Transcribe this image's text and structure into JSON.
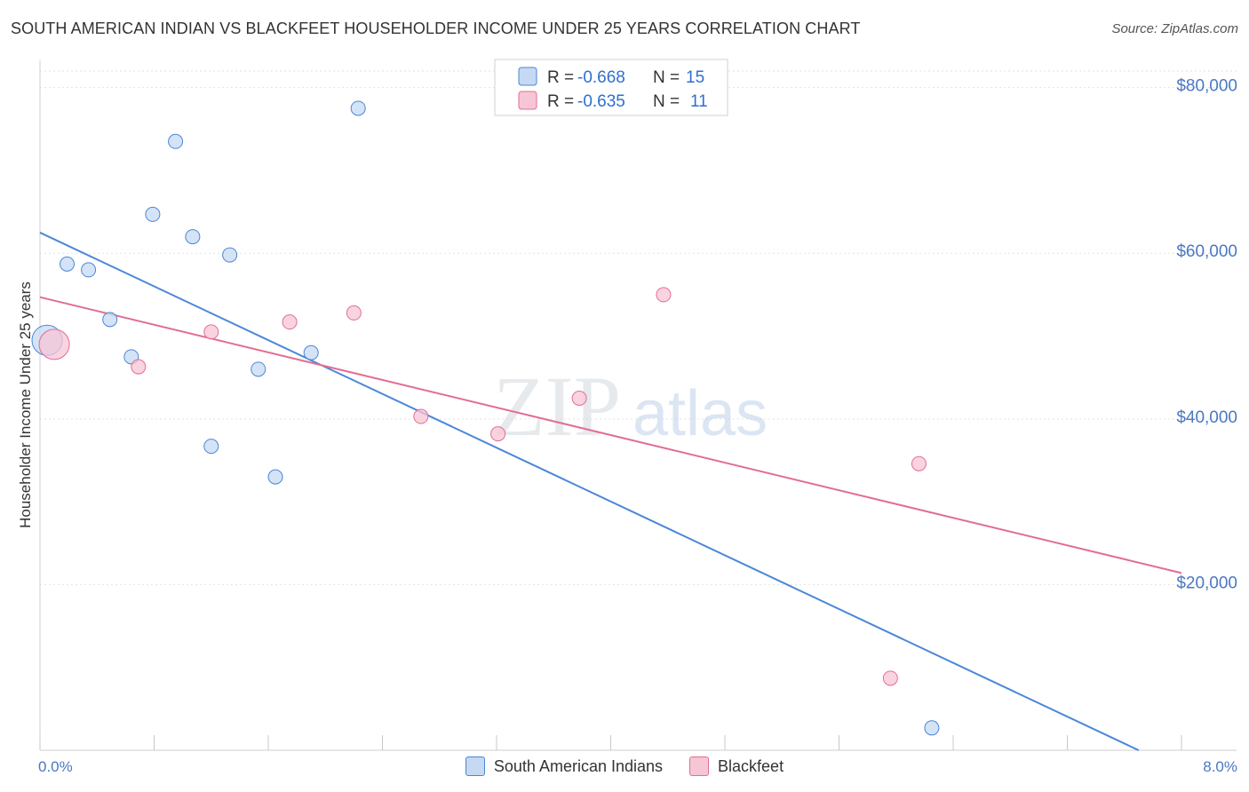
{
  "header": {
    "title": "SOUTH AMERICAN INDIAN VS BLACKFEET HOUSEHOLDER INCOME UNDER 25 YEARS CORRELATION CHART",
    "source": "Source: ZipAtlas.com"
  },
  "watermark": {
    "zip": "ZIP",
    "atlas": "atlas"
  },
  "chart_data": {
    "type": "scatter",
    "title": "SOUTH AMERICAN INDIAN VS BLACKFEET HOUSEHOLDER INCOME UNDER 25 YEARS CORRELATION CHART",
    "xlabel": "",
    "ylabel": "Householder Income Under 25 years",
    "xlim": [
      0,
      8
    ],
    "ylim": [
      0,
      82000
    ],
    "x_tick_labels": {
      "min": "0.0%",
      "max": "8.0%"
    },
    "y_ticks": [
      {
        "value": 20000,
        "label": "$20,000"
      },
      {
        "value": 40000,
        "label": "$40,000"
      },
      {
        "value": 60000,
        "label": "$60,000"
      },
      {
        "value": 80000,
        "label": "$80,000"
      }
    ],
    "series": [
      {
        "name": "South American Indians",
        "color": "#4a86d8",
        "fill": "#c5d9f3",
        "r": "-0.668",
        "n": "15",
        "points": [
          {
            "x": 0.05,
            "y": 49500,
            "big": true
          },
          {
            "x": 0.19,
            "y": 58700
          },
          {
            "x": 0.34,
            "y": 58000
          },
          {
            "x": 0.49,
            "y": 52000
          },
          {
            "x": 0.64,
            "y": 47500
          },
          {
            "x": 0.79,
            "y": 64700
          },
          {
            "x": 0.95,
            "y": 73500
          },
          {
            "x": 1.07,
            "y": 62000
          },
          {
            "x": 1.2,
            "y": 36700
          },
          {
            "x": 1.33,
            "y": 59800
          },
          {
            "x": 1.53,
            "y": 46000
          },
          {
            "x": 1.65,
            "y": 33000
          },
          {
            "x": 1.9,
            "y": 48000
          },
          {
            "x": 2.23,
            "y": 77500
          },
          {
            "x": 6.25,
            "y": 2700
          }
        ],
        "trend": {
          "x0": 0,
          "y0": 62500,
          "x1": 7.7,
          "y1": 0
        }
      },
      {
        "name": "Blackfeet",
        "color": "#e26d94",
        "fill": "#f7c6d5",
        "r": "-0.635",
        "n": "11",
        "points": [
          {
            "x": 0.1,
            "y": 49000,
            "big": true
          },
          {
            "x": 0.69,
            "y": 46300
          },
          {
            "x": 1.2,
            "y": 50500
          },
          {
            "x": 1.75,
            "y": 51700
          },
          {
            "x": 2.2,
            "y": 52800
          },
          {
            "x": 2.67,
            "y": 40300
          },
          {
            "x": 3.21,
            "y": 38200
          },
          {
            "x": 3.78,
            "y": 42500
          },
          {
            "x": 4.37,
            "y": 55000
          },
          {
            "x": 5.96,
            "y": 8700
          },
          {
            "x": 6.16,
            "y": 34600
          }
        ],
        "trend": {
          "x0": 0,
          "y0": 54700,
          "x1": 8.0,
          "y1": 21400
        }
      }
    ],
    "legend": {
      "r_label": "R =",
      "n_label": "N ="
    }
  }
}
